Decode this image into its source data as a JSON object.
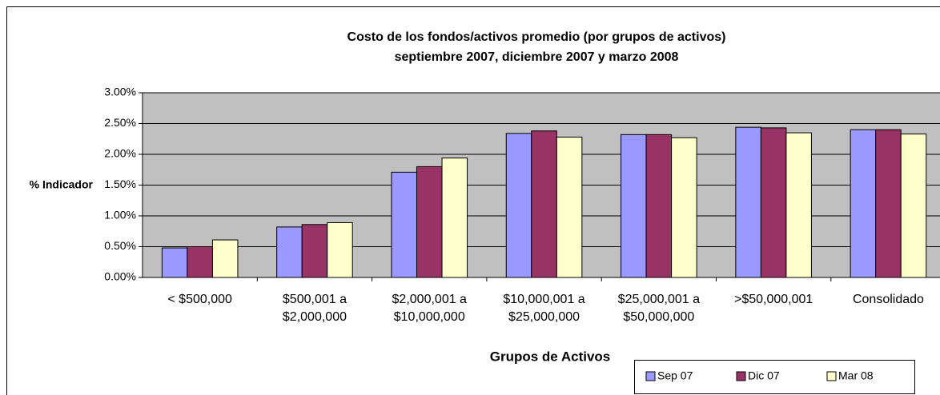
{
  "chart_data": {
    "type": "bar",
    "title": "Costo de los fondos/activos promedio (por grupos de activos)",
    "subtitle": "septiembre 2007, diciembre 2007 y marzo 2008",
    "y_label": "% Indicador",
    "x_label": "Grupos de Activos",
    "categories": [
      [
        "< $500,000"
      ],
      [
        "$500,001 a",
        "$2,000,000"
      ],
      [
        "$2,000,001 a",
        "$10,000,000"
      ],
      [
        "$10,000,001 a",
        "$25,000,000"
      ],
      [
        "$25,000,001 a",
        "$50,000,000"
      ],
      [
        ">$50,000,001"
      ],
      [
        "Consolidado"
      ]
    ],
    "series": [
      {
        "name": "Sep 07",
        "color": "#9999ff",
        "values": [
          0.48,
          0.82,
          1.71,
          2.34,
          2.32,
          2.44,
          2.4
        ]
      },
      {
        "name": "Dic 07",
        "color": "#993366",
        "values": [
          0.5,
          0.86,
          1.8,
          2.38,
          2.32,
          2.43,
          2.4
        ]
      },
      {
        "name": "Mar 08",
        "color": "#ffffcc",
        "values": [
          0.61,
          0.89,
          1.94,
          2.28,
          2.27,
          2.35,
          2.33
        ]
      }
    ],
    "ylim": [
      0,
      3
    ],
    "yticks": [
      {
        "value": 0,
        "label": "0.00%"
      },
      {
        "value": 0.5,
        "label": "0.50%"
      },
      {
        "value": 1,
        "label": "1.00%"
      },
      {
        "value": 1.5,
        "label": "1.50%"
      },
      {
        "value": 2,
        "label": "2.00%"
      },
      {
        "value": 2.5,
        "label": "2.50%"
      },
      {
        "value": 3,
        "label": "3.00%"
      }
    ],
    "grid": true,
    "plot_background": "#c0c0c0"
  }
}
